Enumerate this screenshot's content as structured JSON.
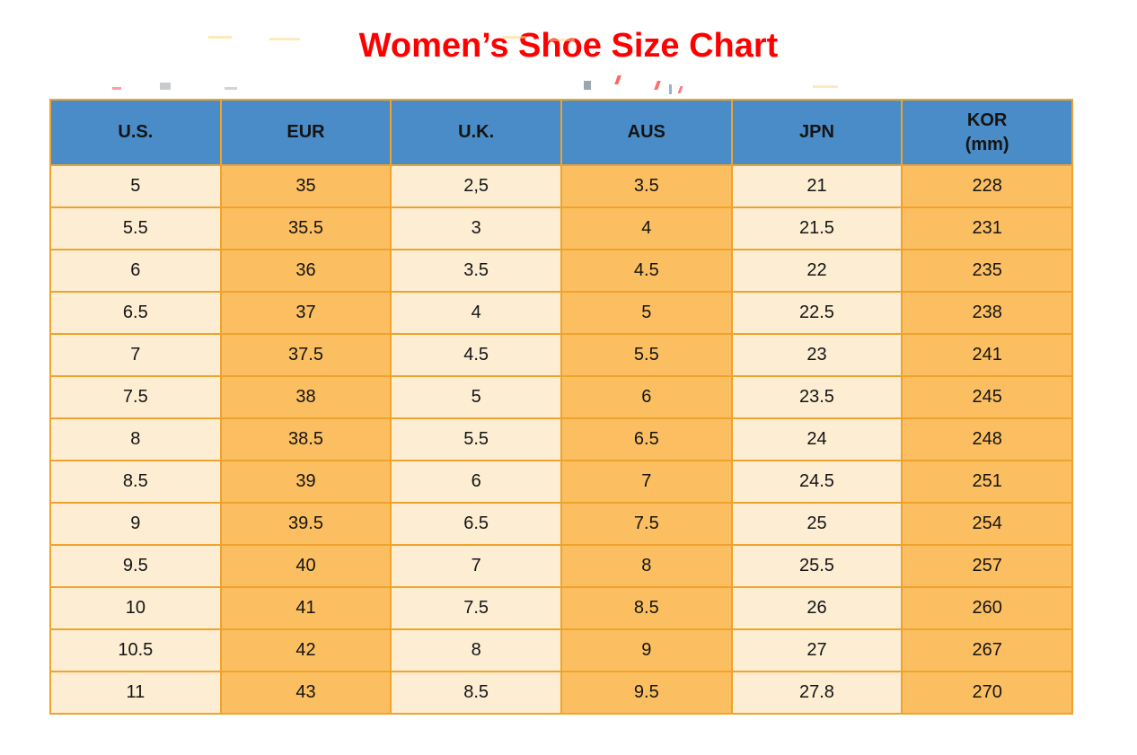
{
  "chart_data": {
    "type": "table",
    "title": "Women’s Shoe Size Chart",
    "columns": [
      {
        "label": "U.S."
      },
      {
        "label": "EUR"
      },
      {
        "label": "U.K."
      },
      {
        "label": "AUS"
      },
      {
        "label": "JPN"
      },
      {
        "label": "KOR",
        "sublabel": "(mm)"
      }
    ],
    "rows": [
      [
        "5",
        "35",
        "2,5",
        "3.5",
        "21",
        "228"
      ],
      [
        "5.5",
        "35.5",
        "3",
        "4",
        "21.5",
        "231"
      ],
      [
        "6",
        "36",
        "3.5",
        "4.5",
        "22",
        "235"
      ],
      [
        "6.5",
        "37",
        "4",
        "5",
        "22.5",
        "238"
      ],
      [
        "7",
        "37.5",
        "4.5",
        "5.5",
        "23",
        "241"
      ],
      [
        "7.5",
        "38",
        "5",
        "6",
        "23.5",
        "245"
      ],
      [
        "8",
        "38.5",
        "5.5",
        "6.5",
        "24",
        "248"
      ],
      [
        "8.5",
        "39",
        "6",
        "7",
        "24.5",
        "251"
      ],
      [
        "9",
        "39.5",
        "6.5",
        "7.5",
        "25",
        "254"
      ],
      [
        "9.5",
        "40",
        "7",
        "8",
        "25.5",
        "257"
      ],
      [
        "10",
        "41",
        "7.5",
        "8.5",
        "26",
        "260"
      ],
      [
        "10.5",
        "42",
        "8",
        "9",
        "27",
        "267"
      ],
      [
        "11",
        "43",
        "8.5",
        "9.5",
        "27.8",
        "270"
      ]
    ],
    "layout_hints": {
      "column_striping": "alternating cream and orange columns",
      "header_position": "top"
    }
  },
  "colors": {
    "title_color": "#ff0000",
    "header_bg": "#4a8cc7",
    "cream_cell": "#fdeed3",
    "orange_cell": "#fbbf62",
    "border": "#efa32c",
    "text": "#141414"
  }
}
